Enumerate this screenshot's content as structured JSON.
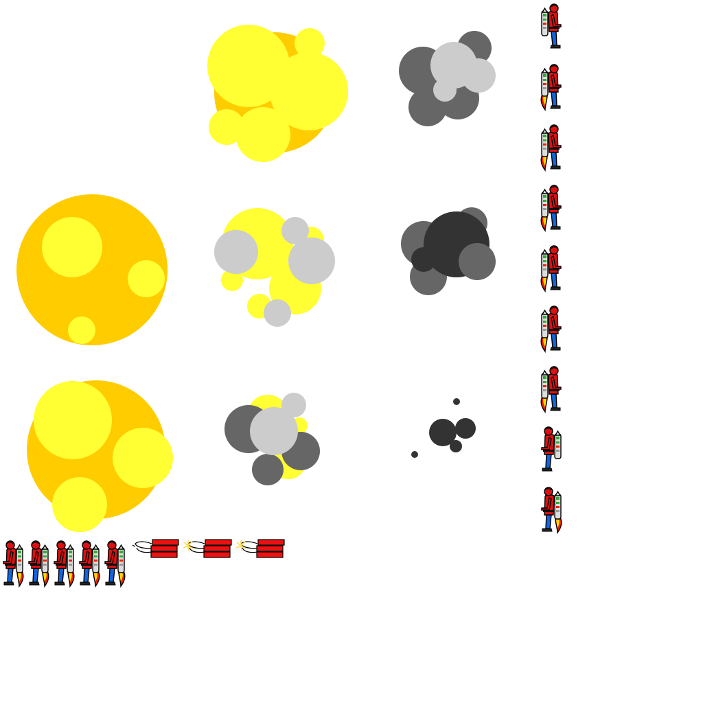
{
  "sheet": {
    "background": "#ffffff",
    "colors": {
      "flame_yellow": "#ffff33",
      "flame_orange": "#ffcc00",
      "smoke_light": "#cccccc",
      "smoke_mid": "#666666",
      "smoke_dark": "#333333",
      "suit_red": "#dd1111",
      "pants_blue": "#1166dd",
      "outline": "#000000",
      "jetpack_gray": "#dddddd",
      "jetpack_green": "#33aa33",
      "thrust_red": "#ee2200",
      "thrust_yellow": "#ffdd00",
      "dynamite_red": "#ee1111",
      "spark_yellow": "#ffdd55"
    },
    "explosion_frames": [
      {
        "name": "fireball-large",
        "kind": "fire"
      },
      {
        "name": "fireball-medium",
        "kind": "fire"
      },
      {
        "name": "fireball-burst",
        "kind": "fire"
      },
      {
        "name": "fire-smoke-mix",
        "kind": "mixed"
      },
      {
        "name": "smoke-mix",
        "kind": "mixed"
      },
      {
        "name": "smoke-gray",
        "kind": "smoke"
      },
      {
        "name": "smoke-dark",
        "kind": "smoke"
      },
      {
        "name": "smoke-fading",
        "kind": "smoke"
      }
    ],
    "jetpack_frames": [
      {
        "name": "idle",
        "facing": "right",
        "thrust": false
      },
      {
        "name": "thrust-1",
        "facing": "right",
        "thrust": true
      },
      {
        "name": "thrust-2",
        "facing": "right",
        "thrust": true
      },
      {
        "name": "thrust-3",
        "facing": "right",
        "thrust": true
      },
      {
        "name": "thrust-4",
        "facing": "right",
        "thrust": true
      },
      {
        "name": "thrust-5",
        "facing": "right",
        "thrust": true
      },
      {
        "name": "thrust-6",
        "facing": "right",
        "thrust": true
      },
      {
        "name": "idle-left",
        "facing": "left",
        "thrust": false
      },
      {
        "name": "thrust-left",
        "facing": "left",
        "thrust": true
      }
    ],
    "walk_frames": [
      {
        "name": "walk-1",
        "facing": "left",
        "thrust": true
      },
      {
        "name": "walk-2",
        "facing": "left",
        "thrust": true
      },
      {
        "name": "walk-3",
        "facing": "left",
        "thrust": true
      },
      {
        "name": "walk-4",
        "facing": "left",
        "thrust": true
      },
      {
        "name": "walk-5",
        "facing": "left",
        "thrust": true
      }
    ],
    "dynamite_frames": [
      {
        "name": "dynamite-unlit",
        "lit": false
      },
      {
        "name": "dynamite-lit-1",
        "lit": true
      },
      {
        "name": "dynamite-lit-2",
        "lit": true
      }
    ]
  }
}
